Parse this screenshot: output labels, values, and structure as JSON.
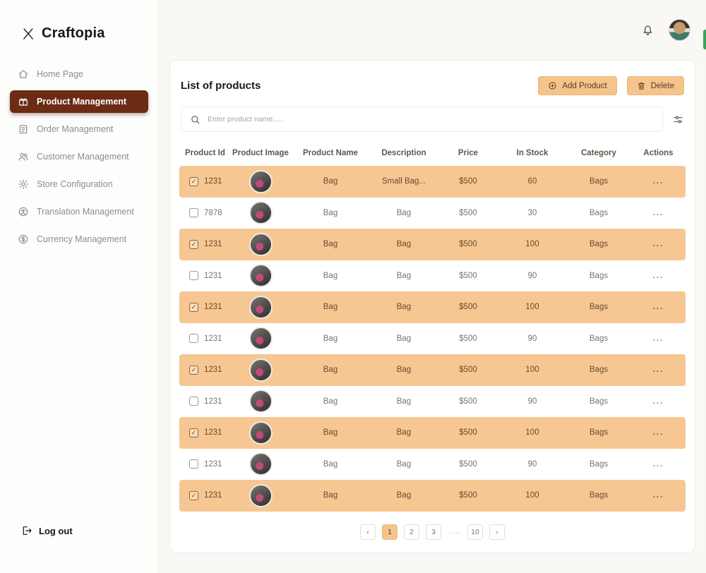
{
  "brand": {
    "name": "Craftopia"
  },
  "sidebar": {
    "items": [
      {
        "label": "Home Page",
        "icon": "home-icon",
        "active": false
      },
      {
        "label": "Product Management",
        "icon": "product-icon",
        "active": true
      },
      {
        "label": "Order Management",
        "icon": "order-icon",
        "active": false
      },
      {
        "label": "Customer Management",
        "icon": "customers-icon",
        "active": false
      },
      {
        "label": "Store Configuration",
        "icon": "gear-icon",
        "active": false
      },
      {
        "label": "Translation Management",
        "icon": "translation-icon",
        "active": false
      },
      {
        "label": "Currency Management",
        "icon": "currency-icon",
        "active": false
      }
    ],
    "logout_label": "Log out"
  },
  "main": {
    "title": "List of products",
    "add_product_label": "Add Product",
    "delete_label": "Delete",
    "search_placeholder": "Enter product name.....",
    "table": {
      "columns": [
        "Product Id",
        "Product Image",
        "Product Name",
        "Description",
        "Price",
        "In Stock",
        "Category",
        "Actions"
      ],
      "rows": [
        {
          "selected": true,
          "id": "1231",
          "name": "Bag",
          "description": "Small Bag...",
          "price": "$500",
          "stock": "60",
          "category": "Bags",
          "actions": "..."
        },
        {
          "selected": false,
          "id": "7878",
          "name": "Bag",
          "description": "Bag",
          "price": "$500",
          "stock": "30",
          "category": "Bags",
          "actions": "..."
        },
        {
          "selected": true,
          "id": "1231",
          "name": "Bag",
          "description": "Bag",
          "price": "$500",
          "stock": "100",
          "category": "Bags",
          "actions": "..."
        },
        {
          "selected": false,
          "id": "1231",
          "name": "Bag",
          "description": "Bag",
          "price": "$500",
          "stock": "90",
          "category": "Bags",
          "actions": "..."
        },
        {
          "selected": true,
          "id": "1231",
          "name": "Bag",
          "description": "Bag",
          "price": "$500",
          "stock": "100",
          "category": "Bags",
          "actions": "..."
        },
        {
          "selected": false,
          "id": "1231",
          "name": "Bag",
          "description": "Bag",
          "price": "$500",
          "stock": "90",
          "category": "Bags",
          "actions": "..."
        },
        {
          "selected": true,
          "id": "1231",
          "name": "Bag",
          "description": "Bag",
          "price": "$500",
          "stock": "100",
          "category": "Bags",
          "actions": "..."
        },
        {
          "selected": false,
          "id": "1231",
          "name": "Bag",
          "description": "Bag",
          "price": "$500",
          "stock": "90",
          "category": "Bags",
          "actions": "..."
        },
        {
          "selected": true,
          "id": "1231",
          "name": "Bag",
          "description": "Bag",
          "price": "$500",
          "stock": "100",
          "category": "Bags",
          "actions": "..."
        },
        {
          "selected": false,
          "id": "1231",
          "name": "Bag",
          "description": "Bag",
          "price": "$500",
          "stock": "90",
          "category": "Bags",
          "actions": "..."
        },
        {
          "selected": true,
          "id": "1231",
          "name": "Bag",
          "description": "Bag",
          "price": "$500",
          "stock": "100",
          "category": "Bags",
          "actions": "..."
        }
      ]
    },
    "pagination": {
      "items": [
        {
          "type": "prev",
          "label": "‹"
        },
        {
          "type": "page",
          "label": "1",
          "active": true
        },
        {
          "type": "page",
          "label": "2",
          "active": false
        },
        {
          "type": "page",
          "label": "3",
          "active": false
        },
        {
          "type": "ellipsis",
          "label": "....."
        },
        {
          "type": "page",
          "label": "10",
          "active": false
        },
        {
          "type": "next",
          "label": "›"
        }
      ]
    }
  },
  "colors": {
    "sidebar_active": "#6b2b15",
    "row_highlight": "#f6c793",
    "button": "#f4c48c"
  }
}
